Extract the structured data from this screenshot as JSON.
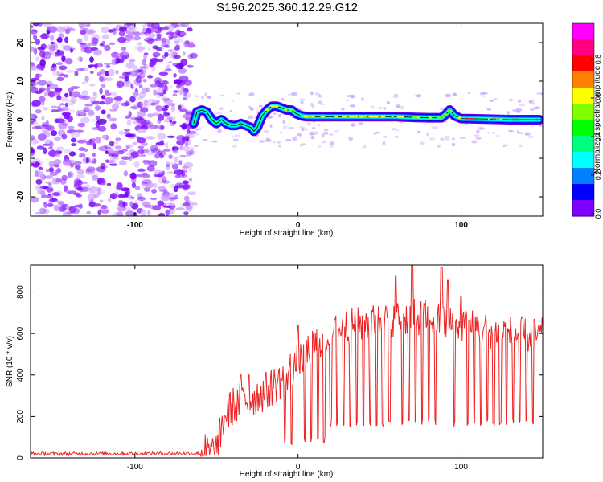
{
  "title": "S196.2025.360.12.29.G12",
  "chart_data": [
    {
      "type": "heatmap",
      "name": "spectrogram",
      "xlabel": "Height of straight line (km)",
      "ylabel": "Frequency (Hz)",
      "xlim": [
        -164,
        150
      ],
      "ylim": [
        -25,
        25
      ],
      "xticks": [
        -100,
        0,
        100
      ],
      "yticks": [
        -20,
        -10,
        0,
        10,
        20
      ],
      "noise_region_x": [
        -164,
        -64
      ],
      "ridge": {
        "x": [
          -64,
          -62,
          -59,
          -56,
          -53,
          -50,
          -47,
          -44,
          -41,
          -38,
          -35,
          -32,
          -29,
          -27,
          -25,
          -22,
          -19,
          -16,
          -13,
          -10,
          -7,
          -4,
          -1,
          2,
          5,
          10,
          20,
          30,
          40,
          50,
          60,
          70,
          80,
          88,
          91,
          93,
          96,
          100,
          110,
          120,
          130,
          140,
          148
        ],
        "y": [
          -1,
          2,
          2.5,
          2,
          0,
          -1,
          0,
          -1,
          -1.5,
          -1.5,
          -1,
          -1.5,
          -2,
          -3,
          -2,
          1,
          2.5,
          3.5,
          3.5,
          3,
          2.5,
          2.5,
          1.5,
          1,
          0.8,
          0.8,
          0.8,
          0.8,
          0.8,
          0.8,
          0.8,
          0.6,
          0.5,
          0.5,
          1.5,
          2.5,
          1,
          0.3,
          0.2,
          0.1,
          0.0,
          0.0,
          0.0
        ]
      },
      "colorbar": {
        "label": "Normalized spectral amplitude",
        "min": 0,
        "max": 1,
        "ticks": [
          "0.0",
          "0.2",
          "0.4",
          "0.6",
          "0.8"
        ],
        "colors": [
          "#ff00ff",
          "#ff0080",
          "#ff0000",
          "#ff8000",
          "#ffff00",
          "#80ff00",
          "#00ff00",
          "#00ff80",
          "#00ffff",
          "#0080ff",
          "#0000ff",
          "#8000ff"
        ]
      }
    },
    {
      "type": "line",
      "name": "snr",
      "xlabel": "Height of straight line (km)",
      "ylabel": "SNR (10 * v/v)",
      "xlim": [
        -164,
        150
      ],
      "ylim": [
        0,
        930
      ],
      "xticks": [
        -100,
        0,
        100
      ],
      "yticks": [
        0,
        200,
        400,
        600,
        800
      ],
      "color": "#ee2222",
      "envelope": {
        "x": [
          -164,
          -60,
          -50,
          -45,
          -40,
          -30,
          -20,
          -10,
          0,
          10,
          20,
          30,
          40,
          50,
          60,
          70,
          80,
          90,
          100,
          110,
          120,
          130,
          140,
          150
        ],
        "y": [
          20,
          22,
          30,
          200,
          250,
          280,
          320,
          380,
          460,
          550,
          600,
          630,
          650,
          660,
          670,
          680,
          675,
          650,
          640,
          630,
          610,
          600,
          590,
          590
        ]
      },
      "spikes": [
        {
          "x": 70,
          "y": 930
        },
        {
          "x": 88,
          "y": 920
        },
        {
          "x": 60,
          "y": 880
        },
        {
          "x": 92,
          "y": 860
        },
        {
          "x": 100,
          "y": 780
        },
        {
          "x": 0,
          "y": 640
        },
        {
          "x": -30,
          "y": 400
        },
        {
          "x": -35,
          "y": 400
        }
      ],
      "dropout_x": [
        -8,
        -4,
        0,
        4,
        8,
        12,
        16,
        20,
        24,
        28,
        32,
        36,
        40,
        44,
        48,
        52,
        56,
        60,
        64,
        68,
        72,
        76,
        80,
        84,
        88,
        92,
        96,
        100,
        104,
        108,
        112,
        116,
        120,
        124,
        128,
        132,
        136,
        140,
        144
      ]
    }
  ]
}
